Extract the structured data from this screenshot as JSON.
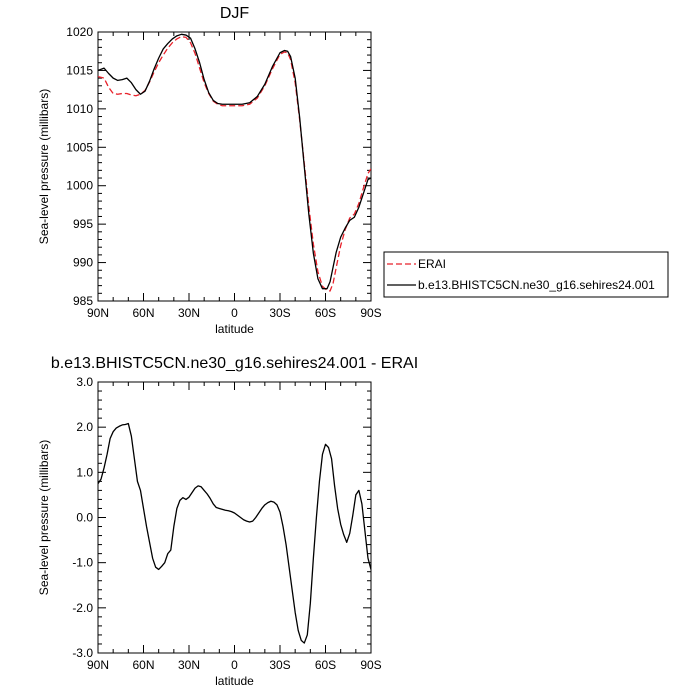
{
  "chart_data": [
    {
      "type": "line",
      "title": "DJF",
      "xlabel": "latitude",
      "ylabel": "Sea-level pressure (millibars)",
      "x_ticks": [
        {
          "v": 90,
          "label": "90N"
        },
        {
          "v": 60,
          "label": "60N"
        },
        {
          "v": 30,
          "label": "30N"
        },
        {
          "v": 0,
          "label": "0"
        },
        {
          "v": -30,
          "label": "30S"
        },
        {
          "v": -60,
          "label": "60S"
        },
        {
          "v": -90,
          "label": "90S"
        }
      ],
      "y_ticks": [
        {
          "v": 985,
          "label": "985"
        },
        {
          "v": 990,
          "label": "990"
        },
        {
          "v": 995,
          "label": "995"
        },
        {
          "v": 1000,
          "label": "1000"
        },
        {
          "v": 1005,
          "label": "1005"
        },
        {
          "v": 1010,
          "label": "1010"
        },
        {
          "v": 1015,
          "label": "1015"
        },
        {
          "v": 1020,
          "label": "1020"
        }
      ],
      "xlim": [
        90,
        -90
      ],
      "ylim": [
        985,
        1020
      ],
      "grid": false,
      "legend": "outside-right",
      "series": [
        {
          "name": "ERAI",
          "color": "#e8212a",
          "dash": "dashed",
          "x": [
            90,
            86,
            83,
            80,
            77,
            74,
            71,
            68,
            65,
            62,
            59,
            56,
            53,
            50,
            47,
            44,
            41,
            38,
            35,
            32,
            29,
            26,
            23,
            20,
            17,
            14,
            11,
            8,
            5,
            2,
            0,
            -5,
            -10,
            -15,
            -20,
            -25,
            -30,
            -33,
            -35,
            -37,
            -40,
            -43,
            -46,
            -49,
            -52,
            -55,
            -58,
            -61,
            -63,
            -65,
            -67,
            -70,
            -73,
            -76,
            -79,
            -82,
            -85,
            -88,
            -90
          ],
          "y": [
            1014.2,
            1014.0,
            1012.8,
            1012.0,
            1011.9,
            1012.0,
            1012.0,
            1011.8,
            1011.7,
            1011.9,
            1012.4,
            1013.5,
            1014.8,
            1016.0,
            1017.0,
            1017.9,
            1018.6,
            1019.1,
            1019.4,
            1019.3,
            1018.6,
            1017.2,
            1015.3,
            1013.4,
            1012.0,
            1011.0,
            1010.6,
            1010.4,
            1010.4,
            1010.4,
            1010.4,
            1010.4,
            1010.6,
            1011.4,
            1013.0,
            1015.2,
            1017.1,
            1017.4,
            1017.3,
            1016.4,
            1013.4,
            1008.5,
            1002.9,
            997.3,
            992.4,
            988.8,
            986.9,
            986.4,
            986.3,
            987.3,
            989.3,
            992.2,
            994.3,
            995.8,
            996.3,
            997.7,
            999.7,
            1001.6,
            1002.2
          ]
        },
        {
          "name": "b.e13.BHISTC5CN.ne30_g16.sehires24.001",
          "color": "#000000",
          "dash": "solid",
          "x": [
            90,
            86,
            83,
            80,
            77,
            74,
            71,
            68,
            65,
            62,
            59,
            56,
            53,
            50,
            47,
            44,
            41,
            38,
            35,
            32,
            29,
            26,
            23,
            20,
            17,
            14,
            11,
            8,
            5,
            2,
            0,
            -5,
            -10,
            -15,
            -20,
            -25,
            -30,
            -33,
            -35,
            -37,
            -40,
            -43,
            -46,
            -49,
            -52,
            -55,
            -58,
            -61,
            -63,
            -65,
            -67,
            -70,
            -73,
            -76,
            -79,
            -82,
            -85,
            -88,
            -90
          ],
          "y": [
            1015.0,
            1015.3,
            1014.6,
            1014.0,
            1013.7,
            1013.8,
            1014.0,
            1013.4,
            1012.5,
            1011.9,
            1012.3,
            1013.6,
            1015.2,
            1016.6,
            1017.8,
            1018.5,
            1019.1,
            1019.5,
            1019.7,
            1019.6,
            1019.2,
            1017.8,
            1016.0,
            1013.8,
            1012.1,
            1011.1,
            1010.7,
            1010.6,
            1010.6,
            1010.6,
            1010.6,
            1010.6,
            1010.8,
            1011.6,
            1013.2,
            1015.5,
            1017.3,
            1017.6,
            1017.5,
            1016.8,
            1014.0,
            1008.8,
            1002.5,
            996.3,
            991.2,
            987.9,
            986.6,
            986.6,
            987.5,
            989.4,
            991.3,
            993.3,
            994.5,
            995.5,
            995.9,
            997.2,
            999.0,
            1000.8,
            1001.0
          ]
        }
      ]
    },
    {
      "type": "line",
      "title": "b.e13.BHISTC5CN.ne30_g16.sehires24.001 - ERAI",
      "xlabel": "latitude",
      "ylabel": "Sea-level pressure (millibars)",
      "x_ticks": [
        {
          "v": 90,
          "label": "90N"
        },
        {
          "v": 60,
          "label": "60N"
        },
        {
          "v": 30,
          "label": "30N"
        },
        {
          "v": 0,
          "label": "0"
        },
        {
          "v": -30,
          "label": "30S"
        },
        {
          "v": -60,
          "label": "60S"
        },
        {
          "v": -90,
          "label": "90S"
        }
      ],
      "y_ticks": [
        {
          "v": -3,
          "label": "-3.0"
        },
        {
          "v": -2,
          "label": "-2.0"
        },
        {
          "v": -1,
          "label": "-1.0"
        },
        {
          "v": 0,
          "label": "0.0"
        },
        {
          "v": 1,
          "label": "1.0"
        },
        {
          "v": 2,
          "label": "2.0"
        },
        {
          "v": 3,
          "label": "3.0"
        }
      ],
      "xlim": [
        90,
        -90
      ],
      "ylim": [
        -3,
        3
      ],
      "grid": false,
      "series": [
        {
          "color": "#000000",
          "dash": "solid",
          "x": [
            90,
            88,
            86,
            84,
            82,
            80,
            78,
            76,
            74,
            72,
            70,
            68,
            66,
            64,
            62,
            60,
            58,
            56,
            54,
            52,
            50,
            48,
            46,
            44,
            42,
            40,
            38,
            36,
            34,
            32,
            30,
            28,
            26,
            24,
            22,
            20,
            18,
            16,
            14,
            12,
            10,
            8,
            6,
            4,
            2,
            0,
            -2,
            -4,
            -6,
            -8,
            -10,
            -12,
            -14,
            -16,
            -18,
            -20,
            -22,
            -24,
            -26,
            -28,
            -30,
            -32,
            -34,
            -36,
            -38,
            -40,
            -42,
            -44,
            -46,
            -48,
            -50,
            -52,
            -54,
            -56,
            -58,
            -60,
            -62,
            -64,
            -66,
            -68,
            -70,
            -72,
            -74,
            -76,
            -78,
            -80,
            -82,
            -84,
            -86,
            -88,
            -90
          ],
          "y": [
            0.75,
            0.85,
            1.1,
            1.4,
            1.75,
            1.9,
            1.98,
            2.02,
            2.05,
            2.06,
            2.08,
            1.8,
            1.3,
            0.8,
            0.6,
            0.2,
            -0.2,
            -0.55,
            -0.9,
            -1.1,
            -1.15,
            -1.08,
            -1.0,
            -0.8,
            -0.72,
            -0.2,
            0.2,
            0.38,
            0.44,
            0.4,
            0.45,
            0.55,
            0.65,
            0.7,
            0.68,
            0.6,
            0.52,
            0.42,
            0.3,
            0.22,
            0.2,
            0.18,
            0.16,
            0.15,
            0.13,
            0.1,
            0.05,
            0.0,
            -0.05,
            -0.08,
            -0.1,
            -0.08,
            0.0,
            0.1,
            0.2,
            0.28,
            0.33,
            0.36,
            0.34,
            0.28,
            0.12,
            -0.2,
            -0.6,
            -1.1,
            -1.6,
            -2.1,
            -2.5,
            -2.72,
            -2.78,
            -2.6,
            -1.9,
            -0.9,
            0.0,
            0.8,
            1.4,
            1.62,
            1.55,
            1.3,
            0.7,
            0.2,
            -0.15,
            -0.38,
            -0.55,
            -0.35,
            0.05,
            0.5,
            0.6,
            0.3,
            -0.3,
            -0.9,
            -1.15
          ]
        }
      ]
    }
  ]
}
